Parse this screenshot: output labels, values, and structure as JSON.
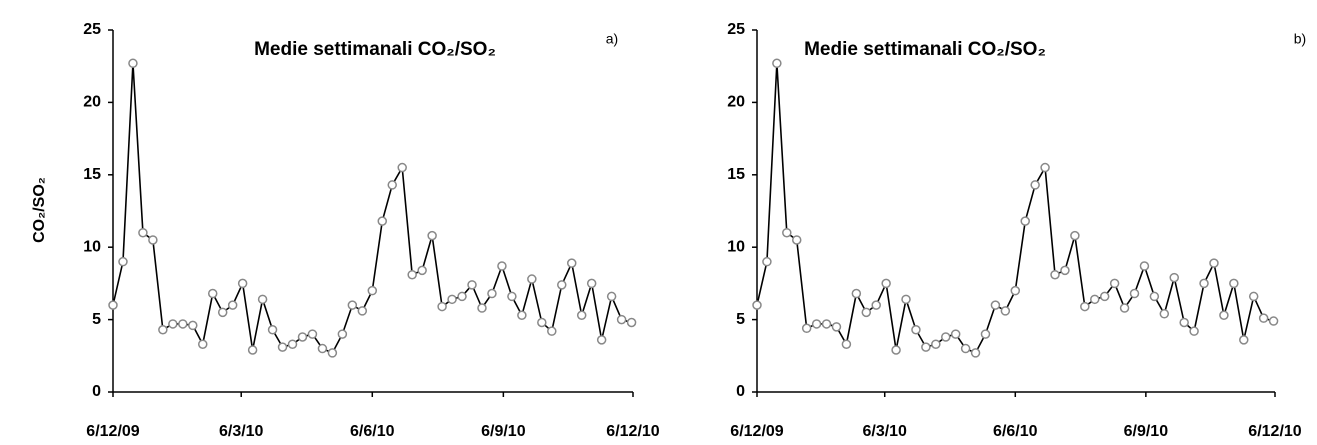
{
  "chart_data": [
    {
      "type": "line",
      "title": "Medie settimanali CO₂/SO₂",
      "panel": "a)",
      "ylabel": "CO₂/SO₂",
      "color": "#000000",
      "marker_color": "#888888",
      "x": [
        "2009-12-06",
        "2009-12-13",
        "2009-12-20",
        "2009-12-27",
        "2010-01-03",
        "2010-01-10",
        "2010-01-17",
        "2010-01-24",
        "2010-01-31",
        "2010-02-07",
        "2010-02-14",
        "2010-02-21",
        "2010-02-28",
        "2010-03-07",
        "2010-03-14",
        "2010-03-21",
        "2010-03-28",
        "2010-04-04",
        "2010-04-11",
        "2010-04-18",
        "2010-04-25",
        "2010-05-02",
        "2010-05-09",
        "2010-05-16",
        "2010-05-23",
        "2010-05-30",
        "2010-06-06",
        "2010-06-13",
        "2010-06-20",
        "2010-06-27",
        "2010-07-04",
        "2010-07-11",
        "2010-07-18",
        "2010-07-25",
        "2010-08-01",
        "2010-08-08",
        "2010-08-15",
        "2010-08-22",
        "2010-08-29",
        "2010-09-05",
        "2010-09-12",
        "2010-09-19",
        "2010-09-26",
        "2010-10-03",
        "2010-10-10",
        "2010-10-17",
        "2010-10-24",
        "2010-10-31",
        "2010-11-07",
        "2010-11-14",
        "2010-11-21",
        "2010-11-28",
        "2010-12-05"
      ],
      "values": [
        6.0,
        9.0,
        22.7,
        11.0,
        10.5,
        4.3,
        4.7,
        4.7,
        4.6,
        3.3,
        6.8,
        5.5,
        6.0,
        7.5,
        2.9,
        6.4,
        4.3,
        3.1,
        3.3,
        3.8,
        4.0,
        3.0,
        2.7,
        4.0,
        6.0,
        5.6,
        7.0,
        11.8,
        14.3,
        15.5,
        8.1,
        8.4,
        10.8,
        5.9,
        6.4,
        6.6,
        7.4,
        5.8,
        6.8,
        8.7,
        6.6,
        5.3,
        7.8,
        4.8,
        4.2,
        7.4,
        8.9,
        5.3,
        7.5,
        3.6,
        6.6,
        5.0,
        4.8
      ],
      "xlim": [
        "2009-12-06",
        "2010-12-06"
      ],
      "xticks": [
        {
          "value": "2009-12-06",
          "label": "6/12/09"
        },
        {
          "value": "2010-03-06",
          "label": "6/3/10"
        },
        {
          "value": "2010-06-06",
          "label": "6/6/10"
        },
        {
          "value": "2010-09-06",
          "label": "6/9/10"
        },
        {
          "value": "2010-12-06",
          "label": "6/12/10"
        }
      ],
      "ylim": [
        0,
        25
      ],
      "yticks": [
        0,
        5,
        10,
        15,
        20,
        25
      ],
      "grid": false
    },
    {
      "type": "line",
      "title": "Medie settimanali CO₂/SO₂",
      "panel": "b)",
      "color": "#000000",
      "marker_color": "#888888",
      "x": [
        "2009-12-06",
        "2009-12-13",
        "2009-12-20",
        "2009-12-27",
        "2010-01-03",
        "2010-01-10",
        "2010-01-17",
        "2010-01-24",
        "2010-01-31",
        "2010-02-07",
        "2010-02-14",
        "2010-02-21",
        "2010-02-28",
        "2010-03-07",
        "2010-03-14",
        "2010-03-21",
        "2010-03-28",
        "2010-04-04",
        "2010-04-11",
        "2010-04-18",
        "2010-04-25",
        "2010-05-02",
        "2010-05-09",
        "2010-05-16",
        "2010-05-23",
        "2010-05-30",
        "2010-06-06",
        "2010-06-13",
        "2010-06-20",
        "2010-06-27",
        "2010-07-04",
        "2010-07-11",
        "2010-07-18",
        "2010-07-25",
        "2010-08-01",
        "2010-08-08",
        "2010-08-15",
        "2010-08-22",
        "2010-08-29",
        "2010-09-05",
        "2010-09-12",
        "2010-09-19",
        "2010-09-26",
        "2010-10-03",
        "2010-10-10",
        "2010-10-17",
        "2010-10-24",
        "2010-10-31",
        "2010-11-07",
        "2010-11-14",
        "2010-11-21",
        "2010-11-28",
        "2010-12-05"
      ],
      "values": [
        6.0,
        9.0,
        22.7,
        11.0,
        10.5,
        4.4,
        4.7,
        4.7,
        4.5,
        3.3,
        6.8,
        5.5,
        6.0,
        7.5,
        2.9,
        6.4,
        4.3,
        3.1,
        3.3,
        3.8,
        4.0,
        3.0,
        2.7,
        4.0,
        6.0,
        5.6,
        7.0,
        11.8,
        14.3,
        15.5,
        8.1,
        8.4,
        10.8,
        5.9,
        6.4,
        6.6,
        7.5,
        5.8,
        6.8,
        8.7,
        6.6,
        5.4,
        7.9,
        4.8,
        4.2,
        7.5,
        8.9,
        5.3,
        7.5,
        3.6,
        6.6,
        5.1,
        4.9
      ],
      "xlim": [
        "2009-12-06",
        "2010-12-06"
      ],
      "xticks": [
        {
          "value": "2009-12-06",
          "label": "6/12/09"
        },
        {
          "value": "2010-03-06",
          "label": "6/3/10"
        },
        {
          "value": "2010-06-06",
          "label": "6/6/10"
        },
        {
          "value": "2010-09-06",
          "label": "6/9/10"
        },
        {
          "value": "2010-12-06",
          "label": "6/12/10"
        }
      ],
      "ylim": [
        0,
        25
      ],
      "yticks": [
        0,
        5,
        10,
        15,
        20,
        25
      ],
      "grid": false
    }
  ]
}
